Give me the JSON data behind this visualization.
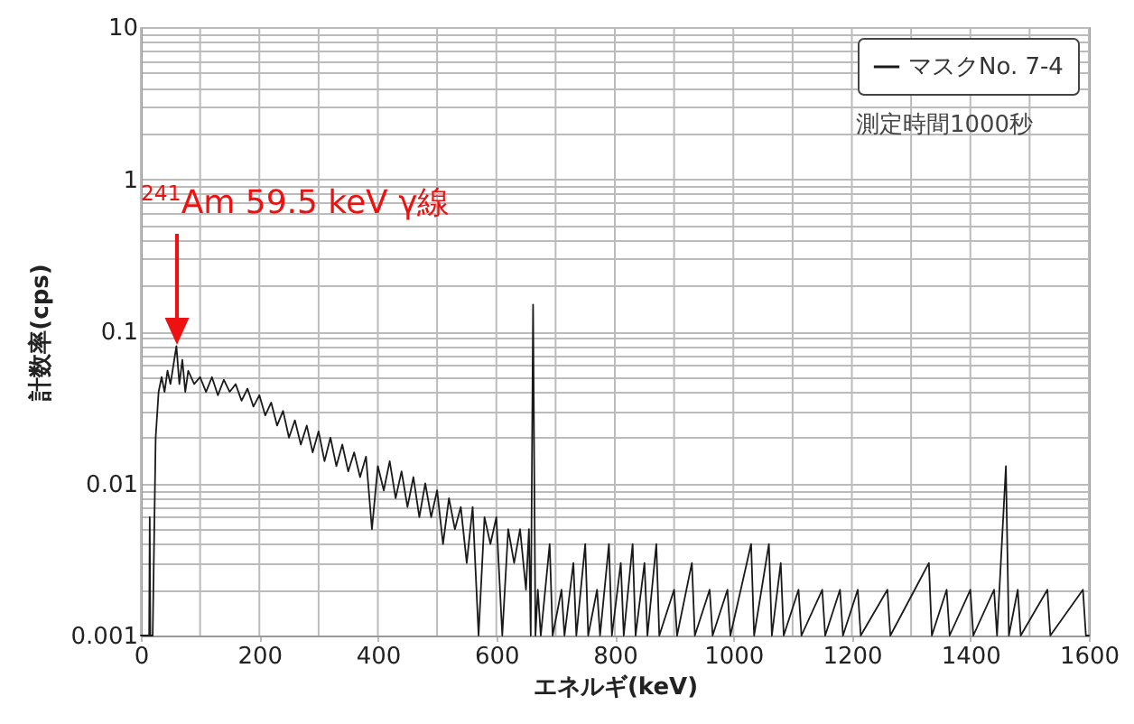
{
  "chart_data": {
    "type": "line",
    "xlabel": "エネルギ(keV)",
    "ylabel": "計数率(cps)",
    "log": "y",
    "grid": true,
    "legend": "top right",
    "xlim": [
      0,
      1600
    ],
    "xticks": [
      0,
      {
        "value": 100,
        "label": null
      },
      200,
      {
        "value": 300,
        "label": null
      },
      400,
      {
        "value": 500,
        "label": null
      },
      600,
      {
        "value": 700,
        "label": null
      },
      800,
      {
        "value": 900,
        "label": null
      },
      1000,
      {
        "value": 1100,
        "label": null
      },
      1200,
      {
        "value": 1300,
        "label": null
      },
      1400,
      {
        "value": 1500,
        "label": null
      },
      1600
    ],
    "ylim": [
      0.001,
      10
    ],
    "yticks": [
      0.001,
      {
        "value": 0.002,
        "label": null
      },
      {
        "value": 0.003,
        "label": null
      },
      {
        "value": 0.004,
        "label": null
      },
      {
        "value": 0.005,
        "label": null
      },
      {
        "value": 0.006,
        "label": null
      },
      {
        "value": 0.007,
        "label": null
      },
      {
        "value": 0.008,
        "label": null
      },
      {
        "value": 0.009,
        "label": null
      },
      0.01,
      {
        "value": 0.02,
        "label": null
      },
      {
        "value": 0.03,
        "label": null
      },
      {
        "value": 0.04,
        "label": null
      },
      {
        "value": 0.05,
        "label": null
      },
      {
        "value": 0.06,
        "label": null
      },
      {
        "value": 0.07,
        "label": null
      },
      {
        "value": 0.08,
        "label": null
      },
      {
        "value": 0.09,
        "label": null
      },
      0.1,
      {
        "value": 0.2,
        "label": null
      },
      {
        "value": 0.3,
        "label": null
      },
      {
        "value": 0.4,
        "label": null
      },
      {
        "value": 0.5,
        "label": null
      },
      {
        "value": 0.6,
        "label": null
      },
      {
        "value": 0.7,
        "label": null
      },
      {
        "value": 0.8,
        "label": null
      },
      {
        "value": 0.9,
        "label": null
      },
      1,
      {
        "value": 2,
        "label": null
      },
      {
        "value": 3,
        "label": null
      },
      {
        "value": 4,
        "label": null
      },
      {
        "value": 5,
        "label": null
      },
      {
        "value": 6,
        "label": null
      },
      {
        "value": 7,
        "label": null
      },
      {
        "value": 8,
        "label": null
      },
      {
        "value": 9,
        "label": null
      },
      10
    ],
    "annotations": [
      "$^{241}$Am  59.5 keV γ線",
      "測定時間1000秒"
    ],
    "series": [
      {
        "name": "マスクNo. 7-4",
        "color": "#1a1a1a",
        "x": [
          0,
          14,
          15,
          16,
          20,
          25,
          30,
          35,
          40,
          45,
          50,
          55,
          60,
          65,
          70,
          75,
          80,
          90,
          100,
          110,
          120,
          130,
          140,
          150,
          160,
          170,
          180,
          190,
          200,
          210,
          220,
          230,
          240,
          250,
          260,
          270,
          280,
          290,
          300,
          310,
          320,
          330,
          340,
          350,
          360,
          370,
          380,
          390,
          400,
          410,
          420,
          430,
          440,
          450,
          460,
          470,
          480,
          490,
          500,
          510,
          520,
          530,
          540,
          550,
          560,
          570,
          580,
          590,
          600,
          610,
          620,
          630,
          640,
          650,
          655,
          658,
          662,
          666,
          670,
          675,
          690,
          695,
          710,
          715,
          730,
          735,
          750,
          755,
          770,
          775,
          790,
          795,
          810,
          815,
          830,
          835,
          850,
          855,
          870,
          875,
          900,
          905,
          930,
          935,
          960,
          965,
          990,
          995,
          1030,
          1035,
          1060,
          1065,
          1080,
          1085,
          1110,
          1115,
          1150,
          1155,
          1180,
          1185,
          1210,
          1215,
          1260,
          1265,
          1330,
          1335,
          1360,
          1365,
          1400,
          1405,
          1440,
          1445,
          1460,
          1465,
          1480,
          1485,
          1530,
          1535,
          1590,
          1595,
          1600
        ],
        "values": [
          0.001,
          0.001,
          0.006,
          0.001,
          0.001,
          0.02,
          0.04,
          0.05,
          0.04,
          0.055,
          0.045,
          0.06,
          0.08,
          0.045,
          0.065,
          0.04,
          0.055,
          0.045,
          0.05,
          0.04,
          0.05,
          0.038,
          0.048,
          0.04,
          0.045,
          0.035,
          0.042,
          0.032,
          0.038,
          0.028,
          0.034,
          0.024,
          0.03,
          0.02,
          0.026,
          0.018,
          0.024,
          0.016,
          0.022,
          0.014,
          0.02,
          0.013,
          0.018,
          0.012,
          0.016,
          0.011,
          0.015,
          0.005,
          0.013,
          0.009,
          0.014,
          0.008,
          0.012,
          0.007,
          0.011,
          0.006,
          0.01,
          0.006,
          0.009,
          0.004,
          0.008,
          0.005,
          0.007,
          0.003,
          0.007,
          0.001,
          0.006,
          0.004,
          0.006,
          0.001,
          0.005,
          0.003,
          0.005,
          0.002,
          0.005,
          0.001,
          0.15,
          0.001,
          0.002,
          0.001,
          0.004,
          0.001,
          0.002,
          0.001,
          0.003,
          0.001,
          0.004,
          0.001,
          0.002,
          0.001,
          0.004,
          0.001,
          0.003,
          0.001,
          0.004,
          0.001,
          0.003,
          0.001,
          0.004,
          0.001,
          0.002,
          0.001,
          0.003,
          0.001,
          0.002,
          0.001,
          0.002,
          0.001,
          0.004,
          0.001,
          0.004,
          0.001,
          0.003,
          0.001,
          0.002,
          0.001,
          0.002,
          0.001,
          0.002,
          0.001,
          0.002,
          0.001,
          0.002,
          0.001,
          0.003,
          0.001,
          0.002,
          0.001,
          0.002,
          0.001,
          0.002,
          0.001,
          0.013,
          0.001,
          0.002,
          0.001,
          0.002,
          0.001,
          0.002,
          0.001,
          0.001
        ]
      }
    ]
  }
}
